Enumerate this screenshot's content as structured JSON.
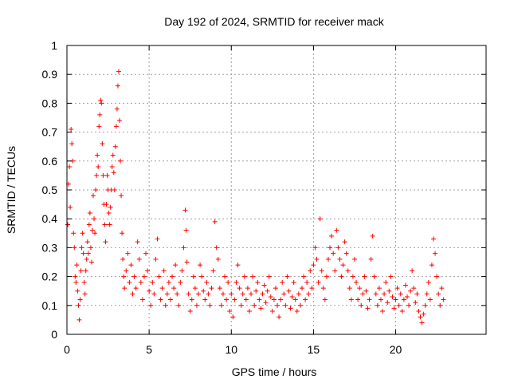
{
  "chart_data": {
    "type": "scatter",
    "title": "Day 192 of 2024, SRMTID for receiver mack",
    "xlabel": "GPS time / hours",
    "ylabel": "SRMTID / TECUs",
    "xlim": [
      0,
      25.5
    ],
    "ylim": [
      0,
      1
    ],
    "grid": true,
    "marker": "+",
    "color": "#ff0000",
    "x_ticks": [
      0,
      5,
      10,
      15,
      20
    ],
    "x_tick_labels": [
      "0",
      "5",
      "10",
      "15",
      "20"
    ],
    "y_ticks": [
      0,
      0.1,
      0.2,
      0.3,
      0.4,
      0.5,
      0.6,
      0.7,
      0.8,
      0.9,
      1
    ],
    "y_tick_labels": [
      "0",
      "0.1",
      "0.2",
      "0.3",
      "0.4",
      "0.5",
      "0.6",
      "0.7",
      "0.8",
      "0.9",
      "1"
    ],
    "series": [
      {
        "name": "SRMTID",
        "points": [
          [
            0.05,
            0.38
          ],
          [
            0.1,
            0.52
          ],
          [
            0.15,
            0.58
          ],
          [
            0.2,
            0.44
          ],
          [
            0.25,
            0.71
          ],
          [
            0.3,
            0.66
          ],
          [
            0.35,
            0.6
          ],
          [
            0.4,
            0.35
          ],
          [
            0.45,
            0.3
          ],
          [
            0.5,
            0.2
          ],
          [
            0.55,
            0.18
          ],
          [
            0.6,
            0.24
          ],
          [
            0.65,
            0.15
          ],
          [
            0.7,
            0.1
          ],
          [
            0.75,
            0.05
          ],
          [
            0.8,
            0.12
          ],
          [
            0.85,
            0.22
          ],
          [
            0.9,
            0.3
          ],
          [
            0.95,
            0.35
          ],
          [
            1.0,
            0.28
          ],
          [
            1.05,
            0.18
          ],
          [
            1.1,
            0.14
          ],
          [
            1.15,
            0.22
          ],
          [
            1.2,
            0.26
          ],
          [
            1.25,
            0.32
          ],
          [
            1.3,
            0.28
          ],
          [
            1.35,
            0.38
          ],
          [
            1.4,
            0.42
          ],
          [
            1.45,
            0.3
          ],
          [
            1.5,
            0.25
          ],
          [
            1.55,
            0.36
          ],
          [
            1.6,
            0.48
          ],
          [
            1.65,
            0.4
          ],
          [
            1.7,
            0.35
          ],
          [
            1.75,
            0.5
          ],
          [
            1.8,
            0.55
          ],
          [
            1.85,
            0.62
          ],
          [
            1.9,
            0.58
          ],
          [
            1.95,
            0.72
          ],
          [
            2.0,
            0.76
          ],
          [
            2.05,
            0.81
          ],
          [
            2.1,
            0.8
          ],
          [
            2.15,
            0.66
          ],
          [
            2.2,
            0.55
          ],
          [
            2.25,
            0.45
          ],
          [
            2.3,
            0.38
          ],
          [
            2.35,
            0.32
          ],
          [
            2.4,
            0.45
          ],
          [
            2.45,
            0.55
          ],
          [
            2.5,
            0.5
          ],
          [
            2.55,
            0.42
          ],
          [
            2.6,
            0.38
          ],
          [
            2.65,
            0.44
          ],
          [
            2.7,
            0.5
          ],
          [
            2.75,
            0.58
          ],
          [
            2.8,
            0.62
          ],
          [
            2.85,
            0.56
          ],
          [
            2.9,
            0.5
          ],
          [
            2.95,
            0.65
          ],
          [
            3.0,
            0.72
          ],
          [
            3.05,
            0.78
          ],
          [
            3.1,
            0.86
          ],
          [
            3.15,
            0.91
          ],
          [
            3.2,
            0.74
          ],
          [
            3.25,
            0.6
          ],
          [
            3.3,
            0.48
          ],
          [
            3.35,
            0.35
          ],
          [
            3.4,
            0.26
          ],
          [
            3.45,
            0.2
          ],
          [
            3.5,
            0.16
          ],
          [
            3.6,
            0.22
          ],
          [
            3.7,
            0.28
          ],
          [
            3.8,
            0.18
          ],
          [
            3.9,
            0.24
          ],
          [
            4.0,
            0.14
          ],
          [
            4.1,
            0.2
          ],
          [
            4.2,
            0.16
          ],
          [
            4.3,
            0.32
          ],
          [
            4.4,
            0.26
          ],
          [
            4.5,
            0.18
          ],
          [
            4.6,
            0.12
          ],
          [
            4.7,
            0.2
          ],
          [
            4.8,
            0.28
          ],
          [
            4.9,
            0.22
          ],
          [
            5.0,
            0.15
          ],
          [
            5.1,
            0.1
          ],
          [
            5.2,
            0.18
          ],
          [
            5.3,
            0.14
          ],
          [
            5.4,
            0.26
          ],
          [
            5.5,
            0.33
          ],
          [
            5.6,
            0.2
          ],
          [
            5.7,
            0.12
          ],
          [
            5.8,
            0.16
          ],
          [
            5.9,
            0.22
          ],
          [
            6.0,
            0.1
          ],
          [
            6.1,
            0.14
          ],
          [
            6.2,
            0.18
          ],
          [
            6.3,
            0.12
          ],
          [
            6.4,
            0.2
          ],
          [
            6.5,
            0.16
          ],
          [
            6.6,
            0.24
          ],
          [
            6.7,
            0.14
          ],
          [
            6.8,
            0.1
          ],
          [
            6.9,
            0.18
          ],
          [
            7.0,
            0.22
          ],
          [
            7.1,
            0.3
          ],
          [
            7.2,
            0.43
          ],
          [
            7.25,
            0.36
          ],
          [
            7.3,
            0.25
          ],
          [
            7.4,
            0.14
          ],
          [
            7.5,
            0.08
          ],
          [
            7.6,
            0.12
          ],
          [
            7.7,
            0.2
          ],
          [
            7.8,
            0.16
          ],
          [
            7.9,
            0.1
          ],
          [
            8.0,
            0.14
          ],
          [
            8.1,
            0.24
          ],
          [
            8.2,
            0.2
          ],
          [
            8.3,
            0.15
          ],
          [
            8.4,
            0.12
          ],
          [
            8.5,
            0.18
          ],
          [
            8.6,
            0.14
          ],
          [
            8.7,
            0.1
          ],
          [
            8.8,
            0.16
          ],
          [
            8.9,
            0.22
          ],
          [
            9.0,
            0.39
          ],
          [
            9.1,
            0.3
          ],
          [
            9.2,
            0.26
          ],
          [
            9.3,
            0.16
          ],
          [
            9.4,
            0.1
          ],
          [
            9.5,
            0.14
          ],
          [
            9.6,
            0.2
          ],
          [
            9.7,
            0.12
          ],
          [
            9.8,
            0.18
          ],
          [
            9.9,
            0.08
          ],
          [
            10.0,
            0.14
          ],
          [
            10.1,
            0.06
          ],
          [
            10.2,
            0.12
          ],
          [
            10.3,
            0.18
          ],
          [
            10.4,
            0.24
          ],
          [
            10.5,
            0.16
          ],
          [
            10.6,
            0.1
          ],
          [
            10.7,
            0.14
          ],
          [
            10.8,
            0.2
          ],
          [
            10.9,
            0.12
          ],
          [
            11.0,
            0.16
          ],
          [
            11.1,
            0.08
          ],
          [
            11.2,
            0.14
          ],
          [
            11.3,
            0.2
          ],
          [
            11.4,
            0.1
          ],
          [
            11.5,
            0.15
          ],
          [
            11.6,
            0.18
          ],
          [
            11.7,
            0.12
          ],
          [
            11.8,
            0.09
          ],
          [
            11.9,
            0.14
          ],
          [
            12.0,
            0.17
          ],
          [
            12.1,
            0.11
          ],
          [
            12.2,
            0.15
          ],
          [
            12.3,
            0.2
          ],
          [
            12.4,
            0.13
          ],
          [
            12.5,
            0.08
          ],
          [
            12.6,
            0.12
          ],
          [
            12.7,
            0.16
          ],
          [
            12.8,
            0.1
          ],
          [
            12.9,
            0.06
          ],
          [
            13.0,
            0.12
          ],
          [
            13.1,
            0.18
          ],
          [
            13.2,
            0.14
          ],
          [
            13.3,
            0.1
          ],
          [
            13.4,
            0.2
          ],
          [
            13.5,
            0.15
          ],
          [
            13.6,
            0.09
          ],
          [
            13.7,
            0.13
          ],
          [
            13.8,
            0.18
          ],
          [
            13.9,
            0.12
          ],
          [
            14.0,
            0.08
          ],
          [
            14.1,
            0.14
          ],
          [
            14.2,
            0.1
          ],
          [
            14.3,
            0.16
          ],
          [
            14.4,
            0.2
          ],
          [
            14.5,
            0.12
          ],
          [
            14.6,
            0.18
          ],
          [
            14.7,
            0.14
          ],
          [
            14.8,
            0.22
          ],
          [
            14.9,
            0.16
          ],
          [
            15.0,
            0.24
          ],
          [
            15.1,
            0.3
          ],
          [
            15.2,
            0.26
          ],
          [
            15.3,
            0.18
          ],
          [
            15.4,
            0.4
          ],
          [
            15.5,
            0.22
          ],
          [
            15.6,
            0.16
          ],
          [
            15.7,
            0.12
          ],
          [
            15.8,
            0.2
          ],
          [
            15.9,
            0.26
          ],
          [
            16.0,
            0.3
          ],
          [
            16.1,
            0.34
          ],
          [
            16.2,
            0.28
          ],
          [
            16.3,
            0.22
          ],
          [
            16.4,
            0.36
          ],
          [
            16.5,
            0.3
          ],
          [
            16.6,
            0.26
          ],
          [
            16.7,
            0.2
          ],
          [
            16.8,
            0.24
          ],
          [
            16.9,
            0.32
          ],
          [
            17.0,
            0.28
          ],
          [
            17.1,
            0.22
          ],
          [
            17.2,
            0.16
          ],
          [
            17.3,
            0.12
          ],
          [
            17.4,
            0.2
          ],
          [
            17.5,
            0.26
          ],
          [
            17.6,
            0.18
          ],
          [
            17.7,
            0.12
          ],
          [
            17.8,
            0.16
          ],
          [
            17.9,
            0.1
          ],
          [
            18.0,
            0.14
          ],
          [
            18.1,
            0.2
          ],
          [
            18.2,
            0.15
          ],
          [
            18.3,
            0.09
          ],
          [
            18.4,
            0.12
          ],
          [
            18.5,
            0.26
          ],
          [
            18.6,
            0.34
          ],
          [
            18.7,
            0.2
          ],
          [
            18.8,
            0.14
          ],
          [
            18.9,
            0.1
          ],
          [
            19.0,
            0.16
          ],
          [
            19.1,
            0.12
          ],
          [
            19.2,
            0.08
          ],
          [
            19.3,
            0.14
          ],
          [
            19.4,
            0.18
          ],
          [
            19.5,
            0.11
          ],
          [
            19.6,
            0.15
          ],
          [
            19.7,
            0.2
          ],
          [
            19.8,
            0.13
          ],
          [
            19.9,
            0.09
          ],
          [
            20.0,
            0.12
          ],
          [
            20.1,
            0.16
          ],
          [
            20.2,
            0.1
          ],
          [
            20.3,
            0.14
          ],
          [
            20.4,
            0.08
          ],
          [
            20.5,
            0.12
          ],
          [
            20.6,
            0.17
          ],
          [
            20.7,
            0.13
          ],
          [
            20.8,
            0.1
          ],
          [
            20.9,
            0.15
          ],
          [
            21.0,
            0.22
          ],
          [
            21.1,
            0.16
          ],
          [
            21.2,
            0.11
          ],
          [
            21.3,
            0.14
          ],
          [
            21.4,
            0.08
          ],
          [
            21.5,
            0.06
          ],
          [
            21.6,
            0.04
          ],
          [
            21.7,
            0.07
          ],
          [
            21.8,
            0.1
          ],
          [
            21.9,
            0.14
          ],
          [
            22.0,
            0.18
          ],
          [
            22.1,
            0.12
          ],
          [
            22.2,
            0.24
          ],
          [
            22.3,
            0.33
          ],
          [
            22.4,
            0.28
          ],
          [
            22.5,
            0.2
          ],
          [
            22.6,
            0.14
          ],
          [
            22.7,
            0.1
          ],
          [
            22.8,
            0.16
          ],
          [
            22.9,
            0.12
          ]
        ]
      }
    ]
  }
}
